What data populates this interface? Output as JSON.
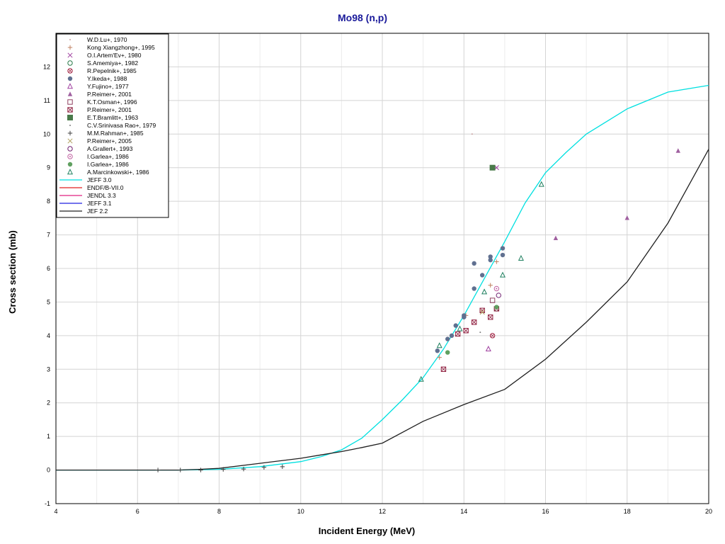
{
  "chart_data": {
    "type": "scatter",
    "title": "Mo98 (n,p)",
    "xlabel": "Incident Energy (MeV)",
    "ylabel": "Cross section (mb)",
    "xlim": [
      4,
      20
    ],
    "ylim": [
      -1,
      13
    ],
    "xticks": [
      "4",
      "6",
      "8",
      "10",
      "12",
      "14",
      "16",
      "18",
      "20"
    ],
    "yticks": [
      "-1",
      "0",
      "1",
      "2",
      "3",
      "4",
      "5",
      "6",
      "7",
      "8",
      "9",
      "10",
      "11",
      "12"
    ],
    "grid": true,
    "legend_position": "top-left",
    "series": [
      {
        "name": "W.D.Lu+, 1970",
        "marker": "dot",
        "color": "#c8a0a0",
        "points": [
          [
            14.2,
            10.0
          ]
        ]
      },
      {
        "name": "Kong Xiangzhong+, 1995",
        "marker": "plus",
        "color": "#c08060",
        "points": [
          [
            13.4,
            3.35
          ],
          [
            14.05,
            4.6
          ],
          [
            14.65,
            5.5
          ],
          [
            14.8,
            6.2
          ]
        ]
      },
      {
        "name": "O.I.Artem'Ev+, 1980",
        "marker": "x",
        "color": "#a040a0",
        "points": [
          [
            14.8,
            9.0
          ]
        ]
      },
      {
        "name": "S.Amemiya+, 1982",
        "marker": "circle",
        "color": "#2a7a4a",
        "points": [
          [
            14.8,
            4.8
          ]
        ]
      },
      {
        "name": "R.Pepelnik+, 1985",
        "marker": "circlex",
        "color": "#a02040",
        "points": [
          [
            14.7,
            4.0
          ]
        ]
      },
      {
        "name": "Y.Ikeda+, 1988",
        "marker": "filled-circle",
        "color": "#607090",
        "points": [
          [
            13.35,
            3.55
          ],
          [
            13.6,
            3.9
          ],
          [
            13.7,
            4.0
          ],
          [
            13.8,
            4.3
          ],
          [
            14.0,
            4.55
          ],
          [
            14.0,
            4.6
          ],
          [
            14.25,
            5.4
          ],
          [
            14.25,
            6.15
          ],
          [
            14.45,
            5.8
          ],
          [
            14.65,
            6.35
          ],
          [
            14.65,
            6.25
          ],
          [
            14.95,
            6.6
          ],
          [
            14.95,
            6.4
          ]
        ]
      },
      {
        "name": "Y.Fujino+, 1977",
        "marker": "triangle",
        "color": "#a040a0",
        "points": [
          [
            14.6,
            3.6
          ]
        ]
      },
      {
        "name": "P.Reimer+, 2001",
        "marker": "filled-triangle",
        "color": "#a060a0",
        "points": [
          [
            16.25,
            6.9
          ],
          [
            18.0,
            7.5
          ],
          [
            19.25,
            9.5
          ]
        ]
      },
      {
        "name": "K.T.Osman+, 1996",
        "marker": "square",
        "color": "#904060",
        "points": [
          [
            14.7,
            5.05
          ]
        ]
      },
      {
        "name": "P.Reimer+, 2001",
        "marker": "squarex",
        "color": "#902040",
        "points": [
          [
            13.5,
            3.0
          ],
          [
            13.85,
            4.05
          ],
          [
            14.05,
            4.15
          ],
          [
            14.25,
            4.4
          ],
          [
            14.45,
            4.75
          ],
          [
            14.65,
            4.55
          ],
          [
            14.8,
            4.8
          ]
        ]
      },
      {
        "name": "E.T.Bramlitt+, 1963",
        "marker": "filled-square",
        "color": "#4a7a4a",
        "points": [
          [
            14.7,
            9.0
          ]
        ]
      },
      {
        "name": "C.V.Srinivasa Rao+, 1979",
        "marker": "dot",
        "color": "#808080",
        "points": [
          [
            14.4,
            4.1
          ]
        ]
      },
      {
        "name": "M.M.Rahman+, 1985",
        "marker": "plus",
        "color": "#404040",
        "points": [
          [
            6.5,
            0.0
          ],
          [
            7.05,
            0.0
          ],
          [
            7.55,
            0.0
          ],
          [
            8.1,
            0.02
          ],
          [
            8.6,
            0.03
          ],
          [
            9.1,
            0.08
          ],
          [
            9.55,
            0.1
          ]
        ]
      },
      {
        "name": "P.Reimer+, 2005",
        "marker": "x",
        "color": "#b0a060",
        "points": [
          [
            14.45,
            4.7
          ]
        ]
      },
      {
        "name": "A.Grallert+, 1993",
        "marker": "circle-open",
        "color": "#702070",
        "points": [
          [
            14.85,
            5.2
          ]
        ]
      },
      {
        "name": "I.Garlea+, 1986",
        "marker": "circle-dotted",
        "color": "#c060a0",
        "points": [
          [
            14.8,
            5.4
          ]
        ]
      },
      {
        "name": "I.Garlea+, 1986",
        "marker": "filled-circle",
        "color": "#60a060",
        "points": [
          [
            13.6,
            3.5
          ],
          [
            14.8,
            4.85
          ]
        ]
      },
      {
        "name": "A.Marcinkowski+, 1986",
        "marker": "triangle",
        "color": "#208060",
        "points": [
          [
            12.95,
            2.7
          ],
          [
            13.4,
            3.7
          ],
          [
            13.9,
            4.2
          ],
          [
            14.5,
            5.3
          ],
          [
            14.95,
            5.8
          ],
          [
            15.4,
            6.3
          ],
          [
            15.9,
            8.5
          ]
        ]
      }
    ],
    "curves": [
      {
        "name": "JEFF 3.0",
        "color": "#00e0e0",
        "points": [
          [
            4,
            0
          ],
          [
            6,
            0
          ],
          [
            7,
            0
          ],
          [
            8,
            0.02
          ],
          [
            9,
            0.1
          ],
          [
            10,
            0.25
          ],
          [
            10.5,
            0.4
          ],
          [
            11,
            0.6
          ],
          [
            11.5,
            0.95
          ],
          [
            12,
            1.5
          ],
          [
            12.5,
            2.1
          ],
          [
            13,
            2.75
          ],
          [
            13.5,
            3.6
          ],
          [
            14,
            4.6
          ],
          [
            14.5,
            5.7
          ],
          [
            15,
            6.8
          ],
          [
            15.5,
            7.95
          ],
          [
            16,
            8.85
          ],
          [
            16.5,
            9.45
          ],
          [
            17,
            10.0
          ],
          [
            18,
            10.75
          ],
          [
            19,
            11.25
          ],
          [
            20,
            11.45
          ]
        ]
      },
      {
        "name": "ENDF/B-VII.0",
        "color": "#e02020",
        "points": []
      },
      {
        "name": "JENDL 3.3",
        "color": "#e02080",
        "points": []
      },
      {
        "name": "JEFF 3.1",
        "color": "#2020e0",
        "points": []
      },
      {
        "name": "JEF 2.2",
        "color": "#202020",
        "points": [
          [
            4,
            0
          ],
          [
            6,
            0
          ],
          [
            7,
            0
          ],
          [
            7.5,
            0.02
          ],
          [
            8,
            0.05
          ],
          [
            9,
            0.2
          ],
          [
            10,
            0.35
          ],
          [
            10.5,
            0.45
          ],
          [
            11,
            0.55
          ],
          [
            11.5,
            0.67
          ],
          [
            12,
            0.8
          ],
          [
            13,
            1.45
          ],
          [
            14,
            1.95
          ],
          [
            15,
            2.4
          ],
          [
            16,
            3.3
          ],
          [
            17,
            4.4
          ],
          [
            18,
            5.6
          ],
          [
            19,
            7.35
          ],
          [
            20,
            9.55
          ]
        ]
      }
    ]
  }
}
